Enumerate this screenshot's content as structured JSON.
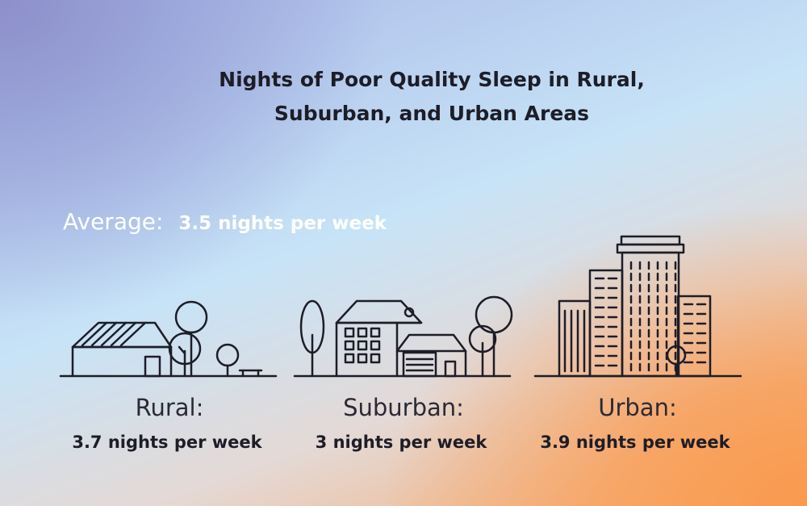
{
  "title_line1": "Nights of Poor Quality Sleep in Rural,",
  "title_line2": "Suburban, and Urban Areas",
  "average": {
    "label": "Average:",
    "value": "3.5 nights per week",
    "nights": 3.5
  },
  "areas": [
    {
      "label": "Rural:",
      "value": "3.7 nights per week",
      "nights": 3.7,
      "icon": "farmhouse-icon"
    },
    {
      "label": "Suburban:",
      "value": "3 nights per week",
      "nights": 3,
      "icon": "suburban-houses-icon"
    },
    {
      "label": "Urban:",
      "value": "3.9 nights per week",
      "nights": 3.9,
      "icon": "city-buildings-icon"
    }
  ]
}
